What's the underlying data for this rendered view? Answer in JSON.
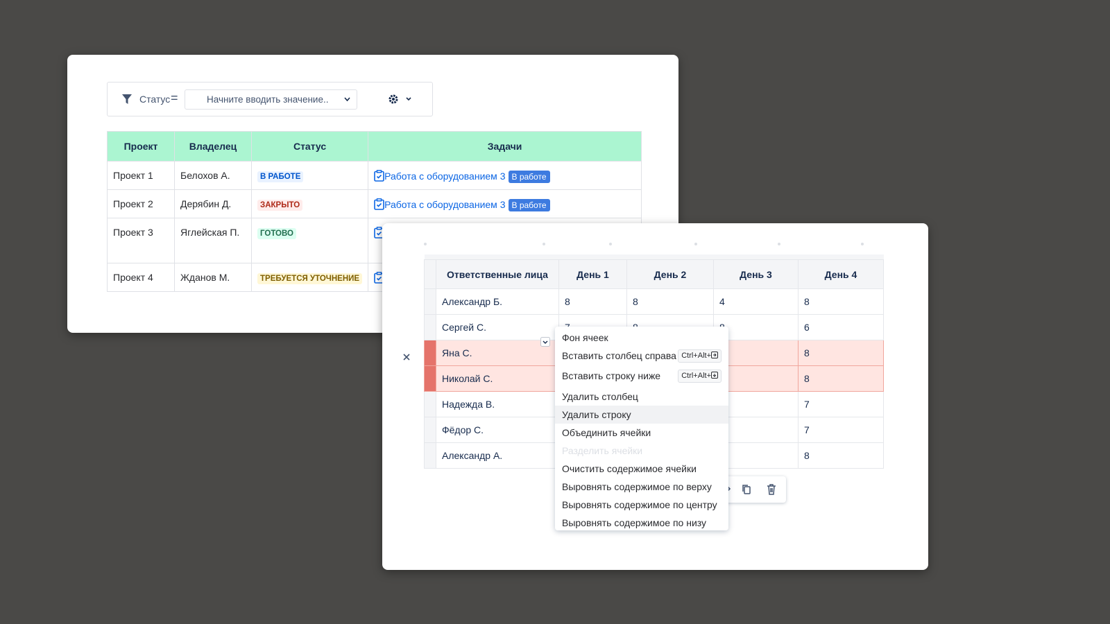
{
  "filter": {
    "label": "Статус",
    "placeholder": "Начните вводить значение.."
  },
  "table1": {
    "headers": [
      "Проект",
      "Владелец",
      "Статус",
      "Задачи"
    ],
    "rows": [
      {
        "project": "Проект 1",
        "owner": "Белохов А.",
        "status": "В РАБОТЕ",
        "task": {
          "text": "Работа с оборудованием 3",
          "badge": "В работе"
        }
      },
      {
        "project": "Проект 2",
        "owner": "Дерябин Д.",
        "status": "ЗАКРЫТО",
        "task": {
          "text": "Работа с оборудованием 3",
          "badge": "В работе"
        }
      },
      {
        "project": "Проект 3",
        "owner": "Яглейская П.",
        "status": "ГОТОВО",
        "task": null
      },
      {
        "project": "Проект 4",
        "owner": "Жданов М.",
        "status": "ТРЕБУЕТСЯ УТОЧНЕНИЕ",
        "task": null
      }
    ]
  },
  "table2": {
    "headers": [
      "Ответственные лица",
      "День 1",
      "День 2",
      "День 3",
      "День 4"
    ],
    "rows": [
      {
        "name": "Александр Б.",
        "hours": [
          8,
          8,
          4,
          8
        ],
        "selected": false
      },
      {
        "name": "Сергей С.",
        "hours": [
          7,
          8,
          8,
          6
        ],
        "selected": false
      },
      {
        "name": "Яна С.",
        "hours": [
          null,
          null,
          null,
          8
        ],
        "selected": true
      },
      {
        "name": "Николай С.",
        "hours": [
          null,
          null,
          null,
          8
        ],
        "selected": true
      },
      {
        "name": "Надежда В.",
        "hours": [
          null,
          null,
          null,
          7
        ],
        "selected": false
      },
      {
        "name": "Фёдор С.",
        "hours": [
          null,
          null,
          null,
          7
        ],
        "selected": false
      },
      {
        "name": "Александр А.",
        "hours": [
          null,
          null,
          null,
          8
        ],
        "selected": false
      }
    ]
  },
  "menu": {
    "items": [
      {
        "label": "Фон ячеек"
      },
      {
        "label": "Вставить столбец справа",
        "shortcut": "Ctrl+Alt+"
      },
      {
        "label": "Вставить строку ниже",
        "shortcut": "Ctrl+Alt+"
      },
      {
        "label": "Удалить столбец"
      },
      {
        "label": "Удалить строку",
        "hover": true
      },
      {
        "label": "Объединить ячейки"
      },
      {
        "label": "Разделить ячейки",
        "disabled": true
      },
      {
        "label": "Очистить содержимое ячейки"
      },
      {
        "label": "Выровнять содержимое по верху"
      },
      {
        "label": "Выровнять содержимое по центру"
      },
      {
        "label": "Выровнять содержимое по низу"
      }
    ]
  }
}
